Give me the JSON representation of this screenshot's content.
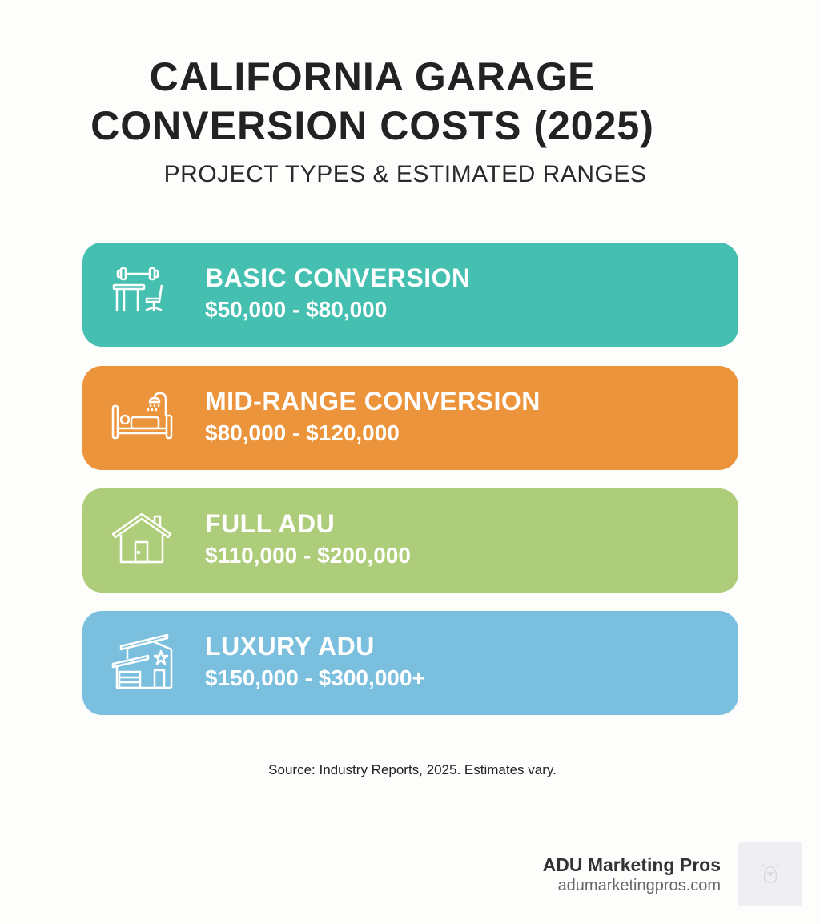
{
  "header": {
    "title_lines": [
      "CALIFORNIA GARAGE",
      "CONVERSION COSTS (2025)"
    ],
    "subtitle": "PROJECT TYPES & ESTIMATED RANGES"
  },
  "cards": [
    {
      "title": "BASIC CONVERSION",
      "price": "$50,000 - $80,000",
      "icon": "gym-desk-chair-icon",
      "color": "#45bfb0"
    },
    {
      "title": "MID-RANGE CONVERSION",
      "price": "$80,000 - $120,000",
      "icon": "bed-shower-icon",
      "color": "#ec943b"
    },
    {
      "title": "FULL ADU",
      "price": "$110,000 - $200,000",
      "icon": "house-icon",
      "color": "#adcd7a"
    },
    {
      "title": "LUXURY ADU",
      "price": "$150,000 - $300,000+",
      "icon": "modern-house-star-icon",
      "color": "#7bbfdf"
    }
  ],
  "source": "Source: Industry Reports, 2025. Estimates vary.",
  "brand": {
    "name": "ADU Marketing Pros",
    "url": "adumarketingpros.com"
  }
}
